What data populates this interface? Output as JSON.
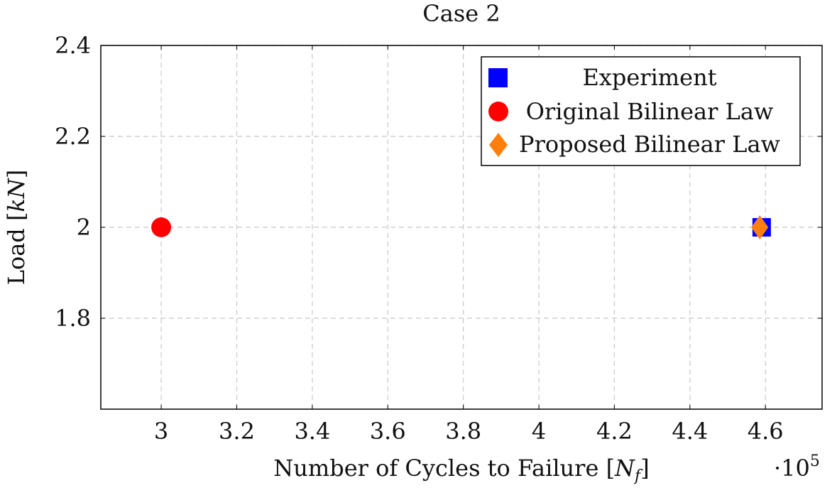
{
  "chart_data": {
    "type": "scatter",
    "title": "Case 2",
    "xlabel": "Number of Cycles to Failure [N_f]",
    "ylabel": "Load [kN]",
    "x_multiplier": "·10^5",
    "xlim": [
      2.84,
      4.75
    ],
    "ylim": [
      1.6,
      2.4
    ],
    "xticks": [
      "3",
      "3.2",
      "3.4",
      "3.6",
      "3.8",
      "4",
      "4.2",
      "4.4",
      "4.6"
    ],
    "yticks": [
      "1.8",
      "2",
      "2.2",
      "2.4"
    ],
    "grid": true,
    "legend_position": "top-right",
    "series": [
      {
        "name": "Experiment",
        "marker": "square",
        "color": "#0000ff",
        "x": [
          4.59
        ],
        "y": [
          2.0
        ]
      },
      {
        "name": "Original Bilinear Law",
        "marker": "circle",
        "color": "#ff0000",
        "x": [
          3.0
        ],
        "y": [
          2.0
        ]
      },
      {
        "name": "Proposed Bilinear Law",
        "marker": "diamond",
        "color": "#ff7f0e",
        "x": [
          4.585
        ],
        "y": [
          2.0
        ]
      }
    ]
  }
}
